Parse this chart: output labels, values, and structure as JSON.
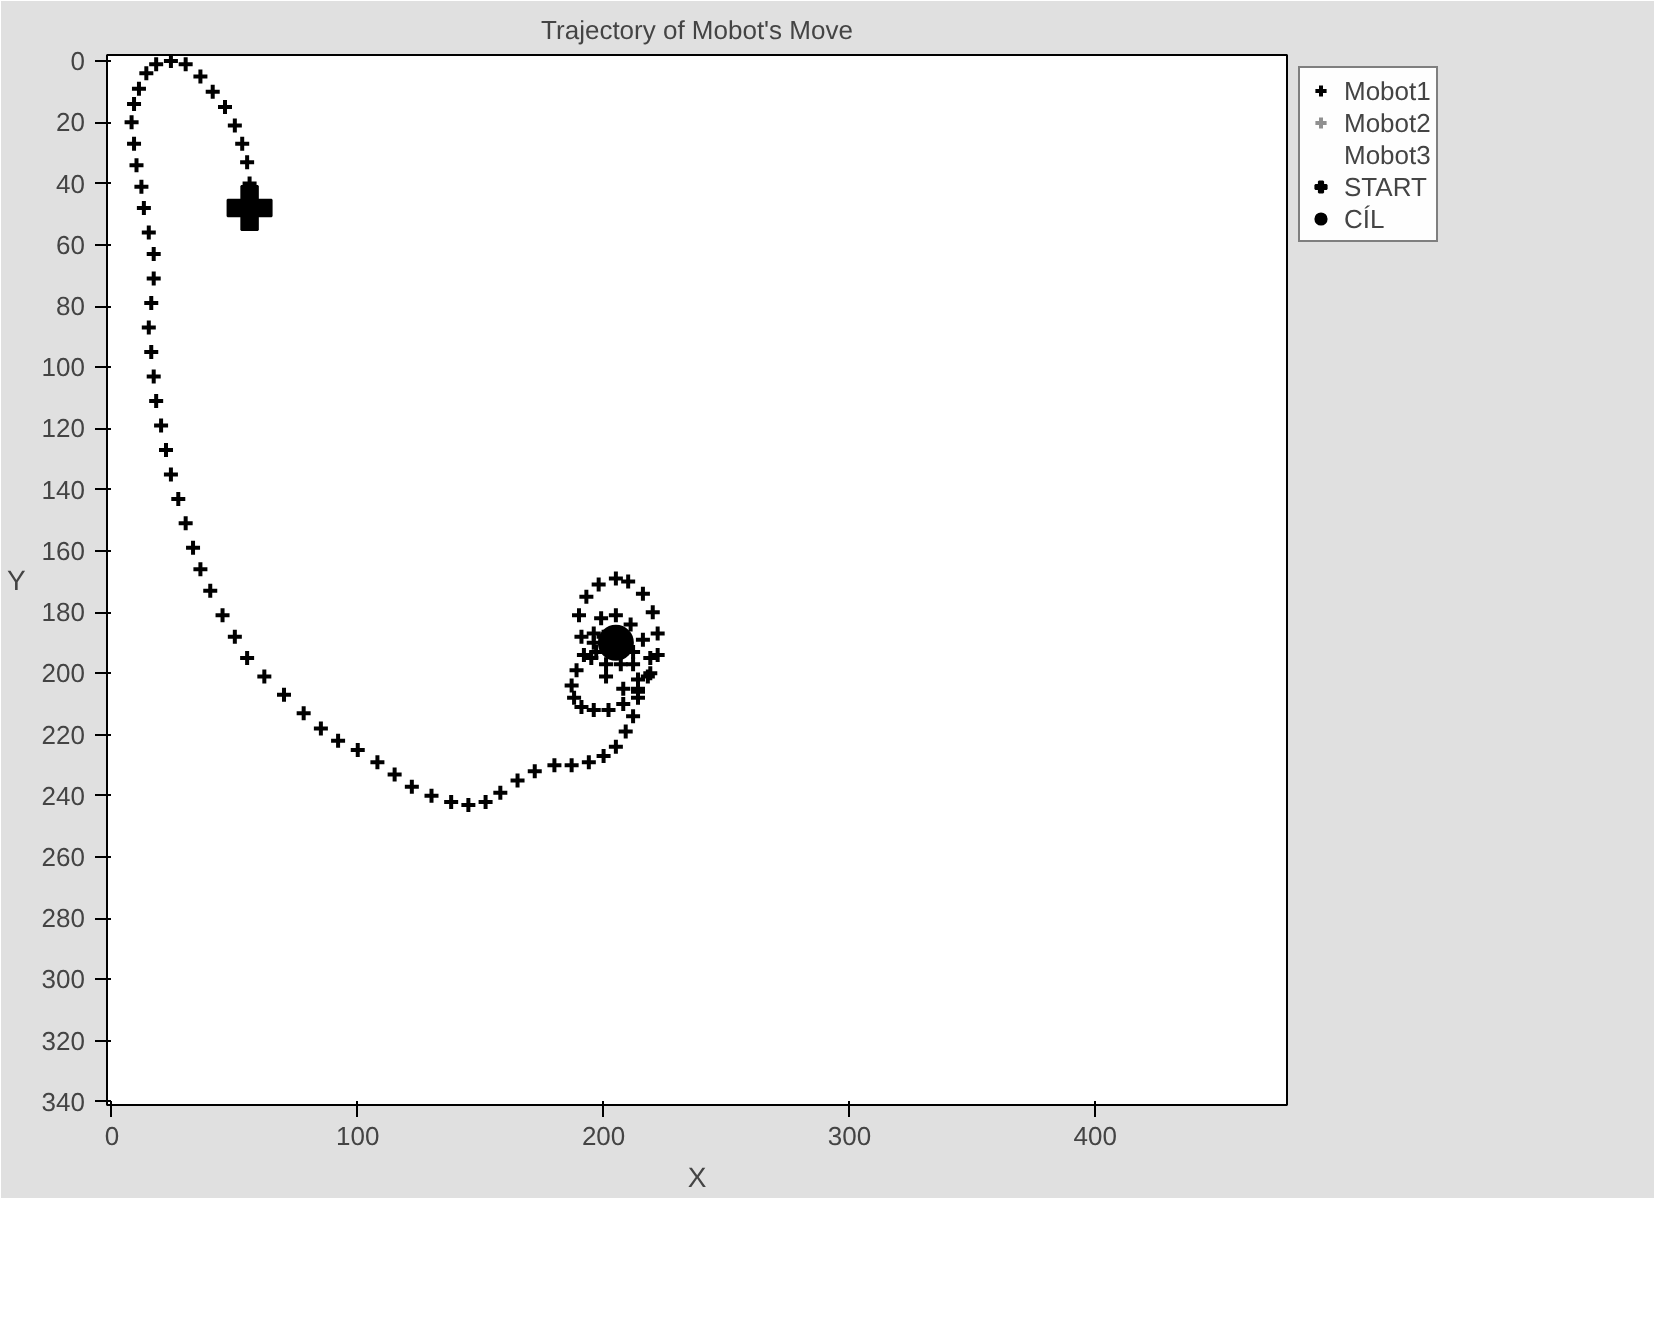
{
  "chart_data": {
    "type": "scatter",
    "title": "Trajectory of Mobot's Move",
    "xlabel": "X",
    "ylabel": "Y",
    "xlim": [
      -2,
      478
    ],
    "ylim": [
      341,
      -2
    ],
    "xticks": [
      0,
      100,
      200,
      300,
      400
    ],
    "yticks": [
      0,
      20,
      40,
      60,
      80,
      100,
      120,
      140,
      160,
      180,
      200,
      220,
      240,
      260,
      280,
      300,
      320,
      340
    ],
    "grid": false,
    "legend": "right",
    "series": [
      {
        "name": "Mobot1",
        "color": "#000000",
        "marker": "cross",
        "x": [
          56,
          55,
          53,
          50,
          46,
          41,
          36,
          30,
          24,
          18,
          14,
          11,
          9,
          8,
          9,
          10,
          12,
          13,
          15,
          17,
          17,
          16,
          15,
          16,
          17,
          18,
          20,
          22,
          24,
          27,
          30,
          33,
          36,
          40,
          45,
          50,
          55,
          62,
          70,
          78,
          85,
          92,
          100,
          108,
          115,
          122,
          130,
          138,
          145,
          152,
          158,
          165,
          172,
          180,
          187,
          194,
          200,
          205,
          209,
          212,
          214,
          214,
          212,
          200,
          196,
          192,
          189,
          187,
          188,
          191,
          196,
          202,
          208,
          214,
          219,
          222,
          222,
          220,
          216,
          210,
          205,
          198,
          193,
          190,
          191,
          195,
          201,
          208,
          214,
          218,
          219,
          216,
          211,
          205,
          199,
          196,
          197,
          201,
          207,
          212
        ],
        "values": [
          40,
          33,
          27,
          21,
          15,
          10,
          5,
          1,
          0,
          1,
          4,
          9,
          14,
          20,
          27,
          34,
          41,
          48,
          56,
          63,
          71,
          79,
          87,
          95,
          103,
          111,
          119,
          127,
          135,
          143,
          151,
          159,
          166,
          173,
          181,
          188,
          195,
          201,
          207,
          213,
          218,
          222,
          225,
          229,
          233,
          237,
          240,
          242,
          243,
          242,
          239,
          235,
          232,
          230,
          230,
          229,
          227,
          224,
          219,
          214,
          208,
          202,
          197,
          188,
          190,
          194,
          199,
          204,
          208,
          211,
          212,
          212,
          210,
          206,
          200,
          194,
          187,
          180,
          174,
          170,
          169,
          171,
          175,
          181,
          188,
          195,
          201,
          205,
          205,
          201,
          195,
          189,
          184,
          181,
          182,
          187,
          193,
          197,
          197,
          193
        ]
      },
      {
        "name": "Mobot2",
        "color": "#909090",
        "marker": "cross"
      },
      {
        "name": "Mobot3",
        "marker": "none"
      },
      {
        "name": "START",
        "color": "#000000",
        "marker": "cross",
        "x": [
          56
        ],
        "values": [
          48
        ]
      },
      {
        "name": "CÍL",
        "color": "#000000",
        "marker": "circle",
        "x": [
          205
        ],
        "values": [
          190
        ]
      }
    ]
  }
}
